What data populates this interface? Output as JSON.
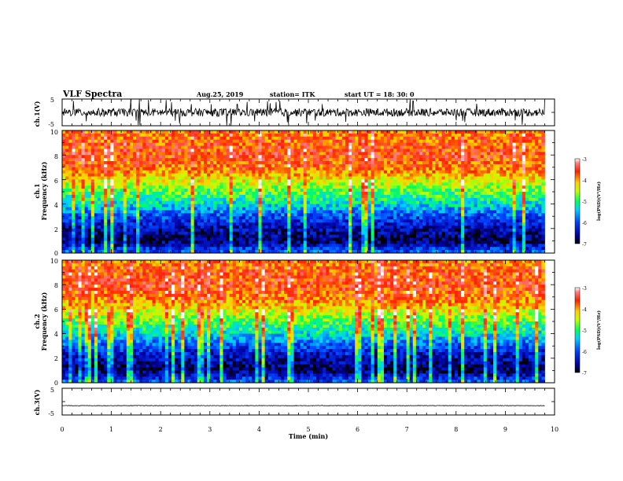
{
  "header": {
    "title": "VLF Spectra",
    "date": "Aug.25, 2019",
    "station": "station= ITK",
    "start_time": "start UT =   18: 30: 0"
  },
  "colors": {
    "waveform": "#000000",
    "colormap": [
      "#000060",
      "#0000ff",
      "#00c8ff",
      "#00ff80",
      "#c8ff00",
      "#ffc800",
      "#ff4000",
      "#ff0000",
      "#ffffff"
    ]
  },
  "chart_data": [
    {
      "type": "line",
      "panel": "ch1-waveform",
      "ylabel": "ch.1(V)",
      "ytick_labels": [
        "5",
        "-5"
      ],
      "ylim": [
        -5,
        5
      ],
      "xlim": [
        0,
        10
      ],
      "description_series": [
        {
          "name": "ch.1",
          "x_range": [
            0,
            9.8
          ],
          "baseline": 0,
          "amplitude_typical": 1.5,
          "spikes_max": 5
        }
      ]
    },
    {
      "type": "heatmap",
      "panel": "ch1-spectrogram",
      "ylabel": "ch.1\nFrequency (kHz)",
      "ylabel_lines": [
        "ch.1",
        "Frequency  (kHz)"
      ],
      "ytick_labels": [
        "10",
        "8",
        "6",
        "4",
        "2",
        "0"
      ],
      "ylim": [
        0,
        10
      ],
      "xlim": [
        0,
        10
      ],
      "time_coverage": [
        0,
        9.8
      ],
      "log_psd_profile": {
        "freq_khz": [
          0,
          1,
          2,
          3,
          4,
          5,
          6,
          7,
          8,
          9,
          10
        ],
        "log_psd": [
          -5.8,
          -6.8,
          -6.5,
          -6.0,
          -5.3,
          -4.8,
          -4.3,
          -3.8,
          -3.6,
          -3.7,
          -3.9
        ]
      },
      "colorbar": {
        "label": "log(PSD)(V²/Hz)",
        "ticks": [
          "-3",
          "-4",
          "-5",
          "-6",
          "-7"
        ],
        "range": [
          -7,
          -3
        ]
      }
    },
    {
      "type": "heatmap",
      "panel": "ch2-spectrogram",
      "ylabel": "ch.2\nFrequency (kHz)",
      "ylabel_lines": [
        "ch.2",
        "Frequency  (kHz)"
      ],
      "ytick_labels": [
        "10",
        "8",
        "6",
        "4",
        "2",
        "0"
      ],
      "ylim": [
        0,
        10
      ],
      "xlim": [
        0,
        10
      ],
      "time_coverage": [
        0,
        9.8
      ],
      "log_psd_profile": {
        "freq_khz": [
          0,
          1,
          2,
          3,
          4,
          5,
          6,
          7,
          8,
          9,
          10
        ],
        "log_psd": [
          -5.8,
          -6.8,
          -6.5,
          -6.0,
          -5.3,
          -4.8,
          -4.3,
          -3.8,
          -3.6,
          -3.7,
          -3.9
        ]
      },
      "colorbar": {
        "label": "log(PSD)(V²/Hz)",
        "ticks": [
          "-3",
          "-4",
          "-5",
          "-6",
          "-7"
        ],
        "range": [
          -7,
          -3
        ]
      }
    },
    {
      "type": "line",
      "panel": "ch3-waveform",
      "ylabel": "ch.3(V)",
      "ytick_labels": [
        "5",
        "-5"
      ],
      "ylim": [
        -5,
        5
      ],
      "xlim": [
        0,
        10
      ],
      "xlabel": "Time  (min)",
      "xtick_labels": [
        "0",
        "1",
        "2",
        "3",
        "4",
        "5",
        "6",
        "7",
        "8",
        "9",
        "10"
      ],
      "description_series": [
        {
          "name": "ch.3",
          "x_range": [
            0,
            9.8
          ],
          "baseline": -1.5,
          "amplitude_typical": 0.1
        }
      ]
    }
  ]
}
